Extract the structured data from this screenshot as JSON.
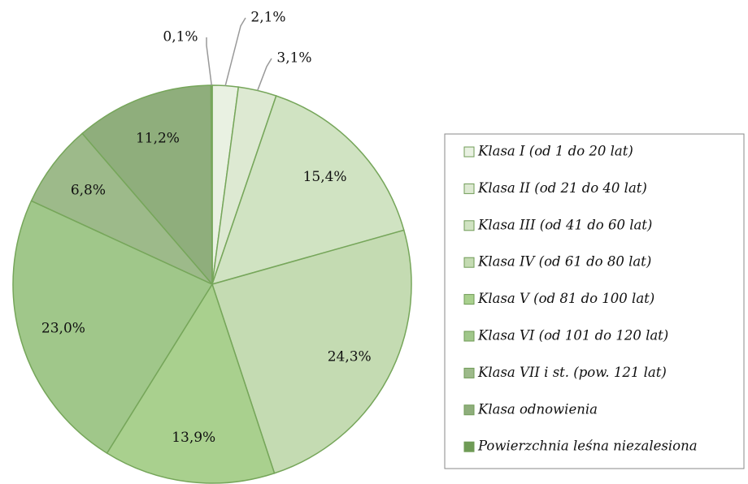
{
  "chart_data": {
    "type": "pie",
    "categories": [
      "Klasa I (od 1 do 20 lat)",
      "Klasa II (od 21 do 40 lat)",
      "Klasa III (od 41 do 60 lat)",
      "Klasa IV (od 61 do 80 lat)",
      "Klasa V (od 81 do 100 lat)",
      "Klasa VI (od 101 do 120 lat)",
      "Klasa VII i st. (pow. 121 lat)",
      "Klasa odnowienia",
      "Powierzchnia leśna niezalesiona"
    ],
    "values": [
      2.1,
      3.1,
      15.4,
      24.3,
      13.9,
      23.0,
      6.8,
      11.2,
      0.1
    ],
    "value_labels": [
      "2,1%",
      "3,1%",
      "15,4%",
      "24,3%",
      "13,9%",
      "23,0%",
      "6,8%",
      "11,2%",
      "0,1%"
    ],
    "colors": [
      "#e9f1e2",
      "#dde9d2",
      "#d0e3c2",
      "#c4dbb2",
      "#a9d08e",
      "#a0c78a",
      "#9dba8a",
      "#8fae7c",
      "#6f9b56"
    ],
    "legend": "right"
  }
}
